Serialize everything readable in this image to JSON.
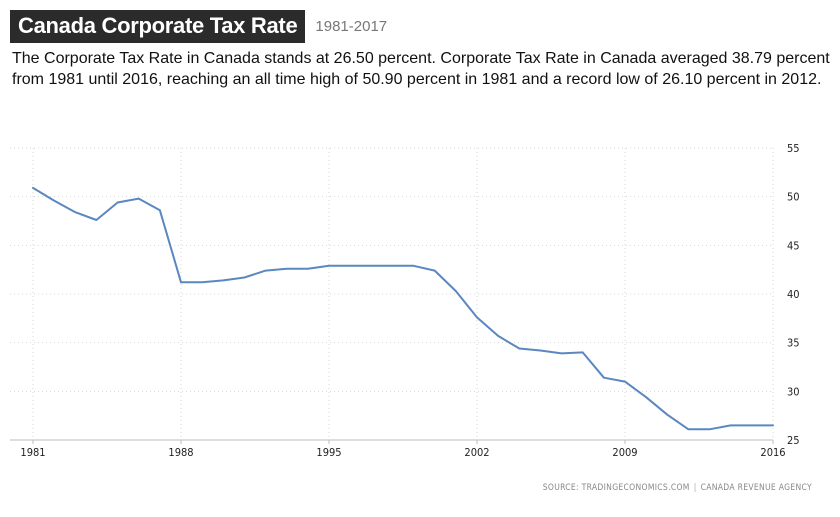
{
  "header": {
    "title": "Canada Corporate Tax Rate",
    "range": "1981-2017"
  },
  "description": "The Corporate Tax Rate in Canada stands at 26.50 percent. Corporate Tax Rate in Canada averaged 38.79 percent from 1981 until 2016, reaching an all time high of 50.90 percent in 1981 and a record low of 26.10 percent in 2012.",
  "source": {
    "left": "SOURCE: TRADINGECONOMICS.COM",
    "separator": "|",
    "right": "CANADA REVENUE AGENCY"
  },
  "colors": {
    "line": "#5b87c0",
    "grid": "#d6d6d6",
    "axis": "#bdbdbd",
    "tick_text": "#222222"
  },
  "chart_data": {
    "type": "line",
    "title": "",
    "xlabel": "",
    "ylabel": "",
    "xlim": [
      1981,
      2016
    ],
    "ylim": [
      25,
      55
    ],
    "x_ticks": [
      1981,
      1988,
      1995,
      2002,
      2009,
      2016
    ],
    "y_ticks": [
      25,
      30,
      35,
      40,
      45,
      50,
      55
    ],
    "grid": true,
    "y_axis_position": "right",
    "series": [
      {
        "x": [
          1981,
          1982,
          1983,
          1984,
          1985,
          1986,
          1987,
          1988,
          1989,
          1990,
          1991,
          1992,
          1993,
          1994,
          1995,
          1996,
          1997,
          1998,
          1999,
          2000,
          2001,
          2002,
          2003,
          2004,
          2005,
          2006,
          2007,
          2008,
          2009,
          2010,
          2011,
          2012,
          2013,
          2014,
          2015,
          2016
        ],
        "y": [
          50.9,
          49.6,
          48.4,
          47.6,
          49.4,
          49.8,
          48.6,
          41.2,
          41.2,
          41.4,
          41.7,
          42.4,
          42.6,
          42.6,
          42.9,
          42.9,
          42.9,
          42.9,
          42.9,
          42.4,
          40.3,
          37.6,
          35.7,
          34.4,
          34.2,
          33.9,
          34.0,
          31.4,
          31.0,
          29.4,
          27.6,
          26.1,
          26.1,
          26.5,
          26.5,
          26.5
        ]
      }
    ]
  }
}
